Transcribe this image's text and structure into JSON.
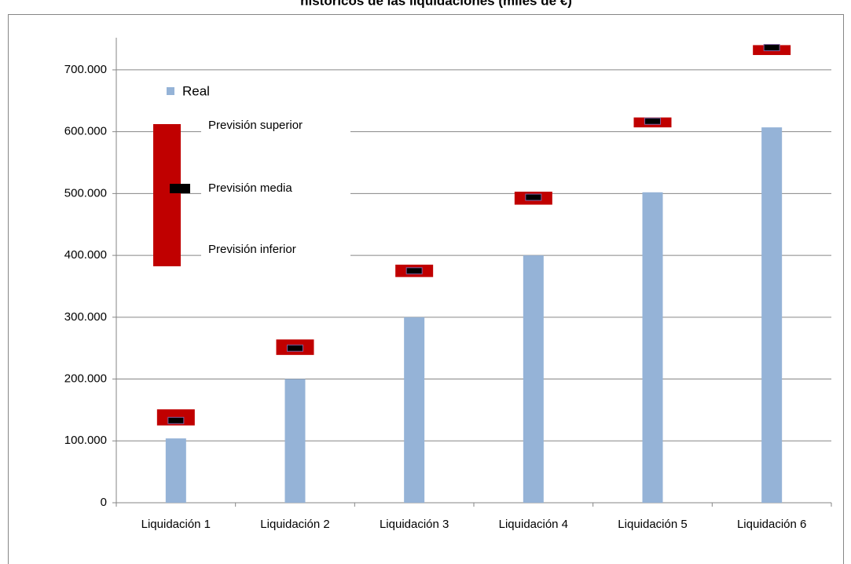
{
  "chart_data": {
    "type": "bar",
    "title": "históricos de las liquidaciones (miles de €)",
    "categories": [
      "Liquidación 1",
      "Liquidación 2",
      "Liquidación 3",
      "Liquidación 4",
      "Liquidación 5",
      "Liquidación 6"
    ],
    "series": [
      {
        "name": "Real",
        "color": "#95b3d7",
        "values": [
          104000,
          200000,
          300000,
          400000,
          502000,
          607000
        ]
      },
      {
        "name": "Previsión superior",
        "color": "#c00000",
        "values": [
          151000,
          264000,
          385000,
          503000,
          623000,
          740000
        ]
      },
      {
        "name": "Previsión media",
        "color": "#000000",
        "values": [
          133000,
          250000,
          375000,
          494000,
          617000,
          736000
        ]
      },
      {
        "name": "Previsión inferior",
        "color": "#c00000",
        "values": [
          125000,
          239000,
          365000,
          482000,
          607000,
          724000
        ]
      }
    ],
    "ylim": [
      0,
      752000
    ],
    "yticks": [
      0,
      {
        "value": 100000,
        "label": "100.000"
      },
      {
        "value": 200000,
        "label": "200.000"
      },
      {
        "value": 300000,
        "label": "300.000"
      },
      {
        "value": 400000,
        "label": "400.000"
      },
      {
        "value": 500000,
        "label": "500.000"
      },
      {
        "value": 600000,
        "label": "600.000"
      },
      {
        "value": 700000,
        "label": "700.000"
      }
    ],
    "grid": true
  }
}
